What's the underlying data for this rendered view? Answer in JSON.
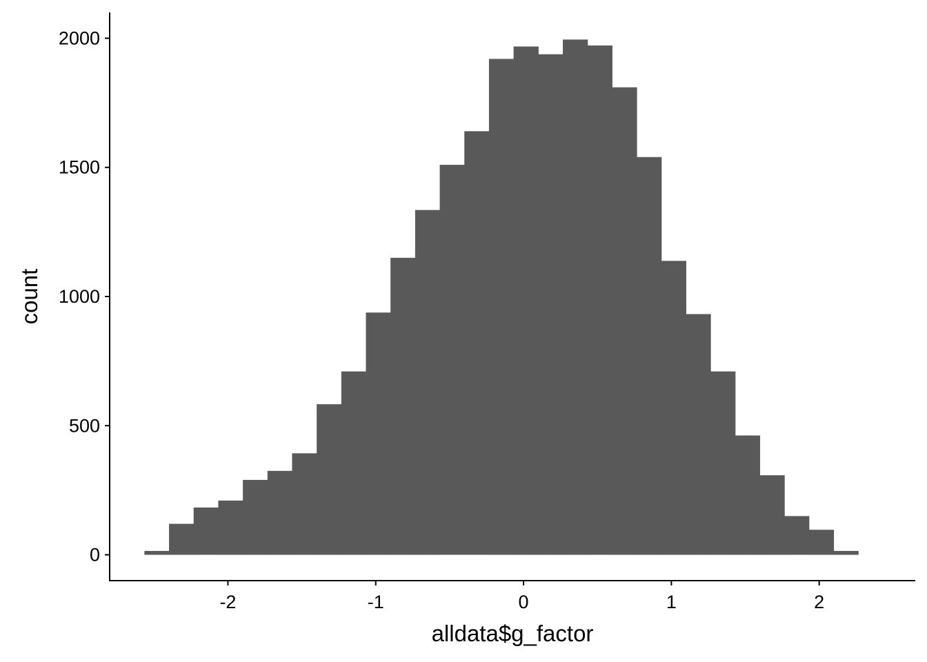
{
  "chart_data": {
    "type": "bar",
    "subtype": "histogram",
    "title": "",
    "xlabel": "alldata$g_factor",
    "ylabel": "count",
    "bin_width": 0.1665,
    "bins": [
      {
        "x_start": -2.565,
        "x_end": -2.3985,
        "count": 15
      },
      {
        "x_start": -2.3985,
        "x_end": -2.232,
        "count": 120
      },
      {
        "x_start": -2.232,
        "x_end": -2.0655,
        "count": 183
      },
      {
        "x_start": -2.0655,
        "x_end": -1.899,
        "count": 210
      },
      {
        "x_start": -1.899,
        "x_end": -1.7325,
        "count": 290
      },
      {
        "x_start": -1.7325,
        "x_end": -1.566,
        "count": 325
      },
      {
        "x_start": -1.566,
        "x_end": -1.3995,
        "count": 393
      },
      {
        "x_start": -1.3995,
        "x_end": -1.233,
        "count": 583
      },
      {
        "x_start": -1.233,
        "x_end": -1.0665,
        "count": 710
      },
      {
        "x_start": -1.0665,
        "x_end": -0.9,
        "count": 938
      },
      {
        "x_start": -0.9,
        "x_end": -0.7335,
        "count": 1150
      },
      {
        "x_start": -0.7335,
        "x_end": -0.567,
        "count": 1335
      },
      {
        "x_start": -0.567,
        "x_end": -0.4005,
        "count": 1510
      },
      {
        "x_start": -0.4005,
        "x_end": -0.234,
        "count": 1640
      },
      {
        "x_start": -0.234,
        "x_end": -0.0675,
        "count": 1920
      },
      {
        "x_start": -0.0675,
        "x_end": 0.099,
        "count": 1968
      },
      {
        "x_start": 0.099,
        "x_end": 0.2655,
        "count": 1938
      },
      {
        "x_start": 0.2655,
        "x_end": 0.432,
        "count": 1995
      },
      {
        "x_start": 0.432,
        "x_end": 0.5985,
        "count": 1972
      },
      {
        "x_start": 0.5985,
        "x_end": 0.765,
        "count": 1810
      },
      {
        "x_start": 0.765,
        "x_end": 0.9315,
        "count": 1540
      },
      {
        "x_start": 0.9315,
        "x_end": 1.098,
        "count": 1138
      },
      {
        "x_start": 1.098,
        "x_end": 1.2645,
        "count": 932
      },
      {
        "x_start": 1.2645,
        "x_end": 1.431,
        "count": 710
      },
      {
        "x_start": 1.431,
        "x_end": 1.5975,
        "count": 462
      },
      {
        "x_start": 1.5975,
        "x_end": 1.764,
        "count": 308
      },
      {
        "x_start": 1.764,
        "x_end": 1.9305,
        "count": 150
      },
      {
        "x_start": 1.9305,
        "x_end": 2.097,
        "count": 97
      },
      {
        "x_start": 2.097,
        "x_end": 2.2635,
        "count": 15
      }
    ],
    "xlim": [
      -2.8,
      2.65
    ],
    "ylim": [
      -100,
      2100
    ],
    "xticks": [
      -2,
      -1,
      0,
      1,
      2
    ],
    "xtick_labels": [
      "-2",
      "-1",
      "0",
      "1",
      "2"
    ],
    "yticks": [
      0,
      500,
      1000,
      1500,
      2000
    ],
    "ytick_labels": [
      "0",
      "500",
      "1000",
      "1500",
      "2000"
    ],
    "bar_color": "#595959",
    "axis_color": "#000000",
    "background": "#ffffff",
    "grid": false,
    "legend": "none"
  }
}
